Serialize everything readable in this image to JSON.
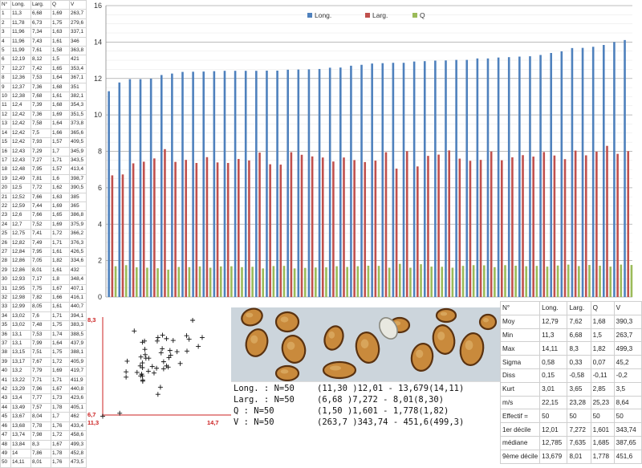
{
  "specimens": {
    "headers": [
      "N°",
      "Long.",
      "Larg.",
      "Q",
      "V"
    ],
    "rows": [
      [
        "1",
        "11,3",
        "6,68",
        "1,69",
        "263,7"
      ],
      [
        "2",
        "11,78",
        "6,73",
        "1,75",
        "279,6"
      ],
      [
        "3",
        "11,96",
        "7,34",
        "1,63",
        "337,1"
      ],
      [
        "4",
        "11,96",
        "7,43",
        "1,61",
        "346"
      ],
      [
        "5",
        "11,99",
        "7,61",
        "1,58",
        "363,8"
      ],
      [
        "6",
        "12,19",
        "8,12",
        "1,5",
        "421"
      ],
      [
        "7",
        "12,27",
        "7,42",
        "1,65",
        "353,4"
      ],
      [
        "8",
        "12,36",
        "7,53",
        "1,64",
        "367,1"
      ],
      [
        "9",
        "12,37",
        "7,36",
        "1,68",
        "351"
      ],
      [
        "10",
        "12,38",
        "7,68",
        "1,61",
        "382,1"
      ],
      [
        "11",
        "12,4",
        "7,39",
        "1,68",
        "354,3"
      ],
      [
        "12",
        "12,42",
        "7,36",
        "1,69",
        "351,5"
      ],
      [
        "13",
        "12,42",
        "7,58",
        "1,64",
        "373,8"
      ],
      [
        "14",
        "12,42",
        "7,5",
        "1,66",
        "365,6"
      ],
      [
        "15",
        "12,42",
        "7,93",
        "1,57",
        "409,5"
      ],
      [
        "16",
        "12,43",
        "7,29",
        "1,7",
        "345,9"
      ],
      [
        "17",
        "12,43",
        "7,27",
        "1,71",
        "343,5"
      ],
      [
        "18",
        "12,48",
        "7,95",
        "1,57",
        "413,4"
      ],
      [
        "19",
        "12,49",
        "7,81",
        "1,6",
        "398,7"
      ],
      [
        "20",
        "12,5",
        "7,72",
        "1,62",
        "390,5"
      ],
      [
        "21",
        "12,52",
        "7,66",
        "1,63",
        "385"
      ],
      [
        "22",
        "12,59",
        "7,44",
        "1,69",
        "365"
      ],
      [
        "23",
        "12,6",
        "7,66",
        "1,65",
        "386,8"
      ],
      [
        "24",
        "12,7",
        "7,52",
        "1,69",
        "375,9"
      ],
      [
        "25",
        "12,75",
        "7,41",
        "1,72",
        "366,2"
      ],
      [
        "26",
        "12,82",
        "7,49",
        "1,71",
        "376,3"
      ],
      [
        "27",
        "12,84",
        "7,95",
        "1,61",
        "426,5"
      ],
      [
        "28",
        "12,86",
        "7,05",
        "1,82",
        "334,6"
      ],
      [
        "29",
        "12,86",
        "8,01",
        "1,61",
        "432"
      ],
      [
        "30",
        "12,93",
        "7,17",
        "1,8",
        "348,4"
      ],
      [
        "31",
        "12,95",
        "7,75",
        "1,67",
        "407,1"
      ],
      [
        "32",
        "12,98",
        "7,82",
        "1,66",
        "416,1"
      ],
      [
        "33",
        "12,99",
        "8,05",
        "1,61",
        "440,7"
      ],
      [
        "34",
        "13,02",
        "7,6",
        "1,71",
        "394,1"
      ],
      [
        "35",
        "13,02",
        "7,48",
        "1,75",
        "383,3"
      ],
      [
        "36",
        "13,1",
        "7,53",
        "1,74",
        "388,5"
      ],
      [
        "37",
        "13,1",
        "7,99",
        "1,64",
        "437,9"
      ],
      [
        "38",
        "13,15",
        "7,51",
        "1,75",
        "388,1"
      ],
      [
        "39",
        "13,17",
        "7,67",
        "1,72",
        "405,9"
      ],
      [
        "40",
        "13,2",
        "7,79",
        "1,69",
        "419,7"
      ],
      [
        "41",
        "13,22",
        "7,71",
        "1,71",
        "411,9"
      ],
      [
        "42",
        "13,29",
        "7,96",
        "1,67",
        "440,8"
      ],
      [
        "43",
        "13,4",
        "7,77",
        "1,73",
        "423,6"
      ],
      [
        "44",
        "13,49",
        "7,57",
        "1,78",
        "405,1"
      ],
      [
        "45",
        "13,67",
        "8,04",
        "1,7",
        "462"
      ],
      [
        "46",
        "13,68",
        "7,78",
        "1,76",
        "433,4"
      ],
      [
        "47",
        "13,74",
        "7,98",
        "1,72",
        "458,6"
      ],
      [
        "48",
        "13,84",
        "8,3",
        "1,67",
        "499,3"
      ],
      [
        "49",
        "14",
        "7,86",
        "1,78",
        "452,8"
      ],
      [
        "50",
        "14,11",
        "8,01",
        "1,76",
        "473,5"
      ]
    ]
  },
  "chart_data": [
    {
      "type": "bar",
      "title": "",
      "ylim": [
        0,
        16
      ],
      "yticks": [
        0,
        2,
        4,
        6,
        8,
        10,
        12,
        14,
        16
      ],
      "grid": true,
      "legend_position": "top-right",
      "series": [
        {
          "name": "Long.",
          "color": "#4f81bd",
          "values": [
            11.3,
            11.78,
            11.96,
            11.96,
            11.99,
            12.19,
            12.27,
            12.36,
            12.37,
            12.38,
            12.4,
            12.42,
            12.42,
            12.42,
            12.42,
            12.43,
            12.43,
            12.48,
            12.49,
            12.5,
            12.52,
            12.59,
            12.6,
            12.7,
            12.75,
            12.82,
            12.84,
            12.86,
            12.86,
            12.93,
            12.95,
            12.98,
            12.99,
            13.02,
            13.02,
            13.1,
            13.1,
            13.15,
            13.17,
            13.2,
            13.22,
            13.29,
            13.4,
            13.49,
            13.67,
            13.68,
            13.74,
            13.84,
            14,
            14.11
          ]
        },
        {
          "name": "Larg.",
          "color": "#c0504d",
          "values": [
            6.68,
            6.73,
            7.34,
            7.43,
            7.61,
            8.12,
            7.42,
            7.53,
            7.36,
            7.68,
            7.39,
            7.36,
            7.58,
            7.5,
            7.93,
            7.29,
            7.27,
            7.95,
            7.81,
            7.72,
            7.66,
            7.44,
            7.66,
            7.52,
            7.41,
            7.49,
            7.95,
            7.05,
            8.01,
            7.17,
            7.75,
            7.82,
            8.05,
            7.6,
            7.48,
            7.53,
            7.99,
            7.51,
            7.67,
            7.79,
            7.71,
            7.96,
            7.77,
            7.57,
            8.04,
            7.78,
            7.98,
            8.3,
            7.86,
            8.01
          ]
        },
        {
          "name": "Q",
          "color": "#9bbb59",
          "values": [
            1.69,
            1.75,
            1.63,
            1.61,
            1.58,
            1.5,
            1.65,
            1.64,
            1.68,
            1.61,
            1.68,
            1.69,
            1.64,
            1.66,
            1.57,
            1.7,
            1.71,
            1.57,
            1.6,
            1.62,
            1.63,
            1.69,
            1.65,
            1.69,
            1.72,
            1.71,
            1.61,
            1.82,
            1.61,
            1.8,
            1.67,
            1.66,
            1.61,
            1.71,
            1.75,
            1.74,
            1.64,
            1.75,
            1.72,
            1.69,
            1.71,
            1.67,
            1.73,
            1.78,
            1.7,
            1.76,
            1.72,
            1.67,
            1.78,
            1.76
          ]
        }
      ]
    },
    {
      "type": "scatter",
      "xlim": [
        11.3,
        14.7
      ],
      "ylim": [
        6.7,
        8.3
      ],
      "xtick_labels": [
        "11,3",
        "14,7"
      ],
      "ytick_labels": [
        "6,7",
        "8,3"
      ],
      "axis_color": "#cc2222",
      "marker": "+",
      "points_x": [
        11.3,
        11.78,
        11.96,
        11.96,
        11.99,
        12.19,
        12.27,
        12.36,
        12.37,
        12.38,
        12.4,
        12.42,
        12.42,
        12.42,
        12.42,
        12.43,
        12.43,
        12.48,
        12.49,
        12.5,
        12.52,
        12.59,
        12.6,
        12.7,
        12.75,
        12.82,
        12.84,
        12.86,
        12.86,
        12.93,
        12.95,
        12.98,
        12.99,
        13.02,
        13.02,
        13.1,
        13.1,
        13.15,
        13.17,
        13.2,
        13.22,
        13.29,
        13.4,
        13.49,
        13.67,
        13.68,
        13.74,
        13.84,
        14,
        14.11
      ],
      "points_y": [
        6.68,
        6.73,
        7.34,
        7.43,
        7.61,
        8.12,
        7.42,
        7.53,
        7.36,
        7.68,
        7.39,
        7.36,
        7.58,
        7.5,
        7.93,
        7.29,
        7.27,
        7.95,
        7.81,
        7.72,
        7.66,
        7.44,
        7.66,
        7.52,
        7.41,
        7.49,
        7.95,
        7.05,
        8.01,
        7.17,
        7.75,
        7.82,
        8.05,
        7.6,
        7.48,
        7.53,
        7.99,
        7.51,
        7.67,
        7.79,
        7.71,
        7.96,
        7.77,
        7.57,
        8.04,
        7.78,
        7.98,
        8.3,
        7.86,
        8.01
      ]
    }
  ],
  "stats": {
    "headers": [
      "N°",
      "Long.",
      "Larg.",
      "Q",
      "V"
    ],
    "rows": [
      [
        "Moy",
        "12,79",
        "7,62",
        "1,68",
        "390,3"
      ],
      [
        "Min",
        "11,3",
        "6,68",
        "1,5",
        "263,7"
      ],
      [
        "Max",
        "14,11",
        "8,3",
        "1,82",
        "499,3"
      ],
      [
        "Sigma",
        "0,58",
        "0,33",
        "0,07",
        "45,2"
      ],
      [
        "Diss",
        "0,15",
        "-0,58",
        "-0,11",
        "-0,2"
      ],
      [
        "Kurt",
        "3,01",
        "3,65",
        "2,85",
        "3,5"
      ],
      [
        "m/s",
        "22,15",
        "23,28",
        "25,23",
        "8,64"
      ],
      [
        "Effectif =",
        "50",
        "50",
        "50",
        "50"
      ],
      [
        "1er décile",
        "12,01",
        "7,272",
        "1,601",
        "343,74"
      ],
      [
        "médiane",
        "12,785",
        "7,635",
        "1,685",
        "387,65"
      ],
      [
        "9ème décile",
        "13,679",
        "8,01",
        "1,778",
        "451,6"
      ]
    ]
  },
  "summary": [
    {
      "label": "Long. : N=50",
      "value": "(11,30 )12,01 - 13,679(14,11)"
    },
    {
      "label": "Larg. : N=50",
      "value": "(6,68 )7,272 - 8,01(8,30)"
    },
    {
      "label": "Q : N=50",
      "value": "(1,50 )1,601 - 1,778(1,82)"
    },
    {
      "label": "V : N=50",
      "value": "(263,7 )343,74 - 451,6(499,3)"
    }
  ],
  "colors": {
    "spore_fill": "#c98a3c",
    "spore_edge": "#5a3210",
    "photo_bg": "#ccd5dc"
  }
}
